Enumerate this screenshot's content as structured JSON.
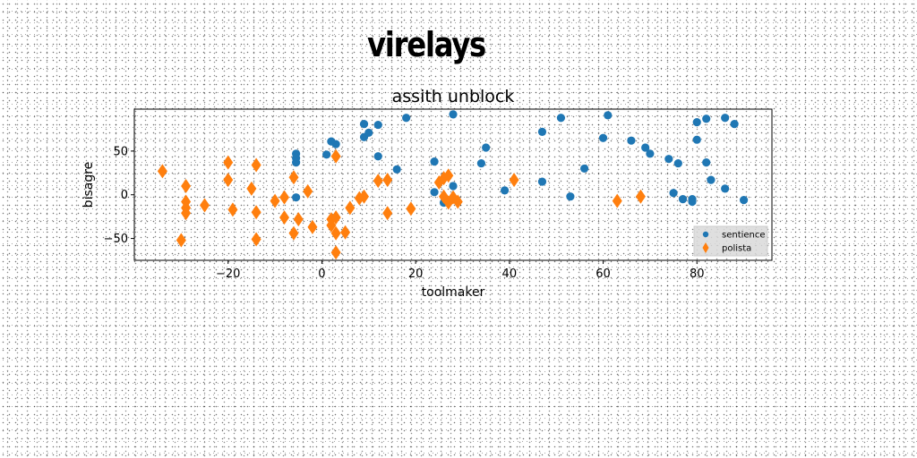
{
  "main_title": "virelays",
  "chart_data": {
    "type": "scatter",
    "title": "assith unblock",
    "xlabel": "toolmaker",
    "ylabel": "bisagre",
    "xlim": [
      -40,
      96
    ],
    "ylim": [
      -75,
      98
    ],
    "xticks": [
      -20,
      0,
      20,
      40,
      60,
      80
    ],
    "yticks": [
      -50,
      0,
      50
    ],
    "grid": false,
    "legend_position": "lower-right",
    "series": [
      {
        "name": "sentience",
        "color": "#1f77b4",
        "marker": "circle",
        "points": [
          [
            -5.5,
            47
          ],
          [
            -5.5,
            42
          ],
          [
            -5.5,
            37
          ],
          [
            -5.5,
            -3
          ],
          [
            1,
            46
          ],
          [
            2,
            61
          ],
          [
            3,
            58
          ],
          [
            9,
            81
          ],
          [
            9,
            66
          ],
          [
            10,
            71
          ],
          [
            12,
            80
          ],
          [
            12,
            44
          ],
          [
            16,
            29
          ],
          [
            18,
            88
          ],
          [
            24,
            38
          ],
          [
            24,
            3
          ],
          [
            26,
            -9
          ],
          [
            28,
            92
          ],
          [
            28,
            10
          ],
          [
            34,
            36
          ],
          [
            35,
            54
          ],
          [
            39,
            5
          ],
          [
            47,
            72
          ],
          [
            47,
            15
          ],
          [
            51,
            88
          ],
          [
            53,
            -2
          ],
          [
            56,
            30
          ],
          [
            60,
            65
          ],
          [
            61,
            91
          ],
          [
            66,
            62
          ],
          [
            69,
            54
          ],
          [
            70,
            47
          ],
          [
            74,
            41
          ],
          [
            75,
            2
          ],
          [
            76,
            36
          ],
          [
            77,
            -5
          ],
          [
            79,
            -5
          ],
          [
            79,
            -8
          ],
          [
            80,
            83
          ],
          [
            80,
            63
          ],
          [
            82,
            37
          ],
          [
            82,
            87
          ],
          [
            83,
            17
          ],
          [
            86,
            88
          ],
          [
            86,
            7
          ],
          [
            88,
            81
          ],
          [
            90,
            -6
          ]
        ]
      },
      {
        "name": "polista",
        "color": "#ff7f0e",
        "marker": "diamond",
        "points": [
          [
            -34,
            27
          ],
          [
            -30,
            -52
          ],
          [
            -29,
            10
          ],
          [
            -29,
            -8
          ],
          [
            -29,
            -15
          ],
          [
            -29,
            -21
          ],
          [
            -25,
            -12
          ],
          [
            -20,
            37
          ],
          [
            -20,
            17
          ],
          [
            -19,
            -17
          ],
          [
            -15,
            7
          ],
          [
            -14,
            34
          ],
          [
            -14,
            -51
          ],
          [
            -14,
            -20
          ],
          [
            -10,
            -7
          ],
          [
            -8,
            -3
          ],
          [
            -8,
            -26
          ],
          [
            -6,
            -44
          ],
          [
            -6,
            20
          ],
          [
            -5,
            -28
          ],
          [
            -3,
            4
          ],
          [
            -2,
            -37
          ],
          [
            2,
            -28
          ],
          [
            2,
            -35
          ],
          [
            3,
            -26
          ],
          [
            3,
            -44
          ],
          [
            3,
            -66
          ],
          [
            3,
            44
          ],
          [
            5,
            -43
          ],
          [
            6,
            -15
          ],
          [
            8,
            -4
          ],
          [
            9,
            -2
          ],
          [
            12,
            16
          ],
          [
            14,
            17
          ],
          [
            14,
            -21
          ],
          [
            19,
            -16
          ],
          [
            25,
            14
          ],
          [
            26,
            19
          ],
          [
            26,
            -2
          ],
          [
            27,
            22
          ],
          [
            27,
            -9
          ],
          [
            28,
            -3
          ],
          [
            29,
            -8
          ],
          [
            41,
            17
          ],
          [
            63,
            -7
          ],
          [
            68,
            -2
          ]
        ]
      }
    ]
  }
}
